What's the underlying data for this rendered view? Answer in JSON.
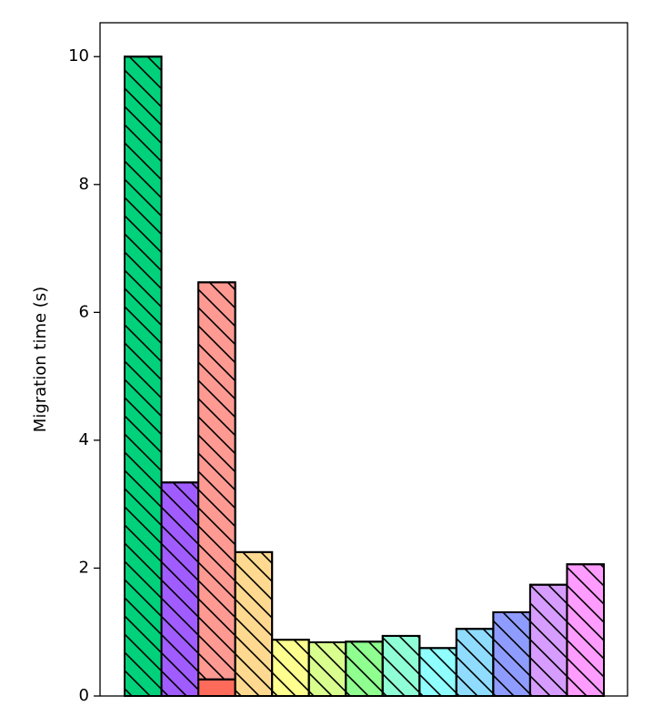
{
  "chart_data": {
    "type": "bar",
    "stacked": true,
    "ylabel": "Migration time (s)",
    "categories": [
      null,
      null,
      null,
      null,
      null,
      null,
      null,
      null,
      null,
      null,
      null,
      null,
      null
    ],
    "series": [
      {
        "color": "#ff6b5b",
        "hatch": false,
        "values": [
          null,
          null,
          0.26,
          null,
          null,
          null,
          null,
          null,
          null,
          null,
          null,
          null,
          null
        ]
      },
      {
        "hatch": true,
        "colors": [
          "#00d17a",
          "#a05cff",
          "#ff9a92",
          "#ffd98f",
          "#ffff8f",
          "#d9ff8f",
          "#8fff8f",
          "#8fffd6",
          "#8fffff",
          "#8fdcff",
          "#8f9cff",
          "#d69cff",
          "#ff9cff"
        ],
        "values": [
          10.0,
          3.34,
          6.21,
          2.25,
          0.88,
          0.84,
          0.85,
          0.94,
          0.75,
          1.05,
          1.31,
          1.74,
          2.06
        ]
      }
    ],
    "ylim": [
      0,
      10.53
    ],
    "yticks": [
      0,
      2,
      4,
      6,
      8,
      10
    ]
  }
}
